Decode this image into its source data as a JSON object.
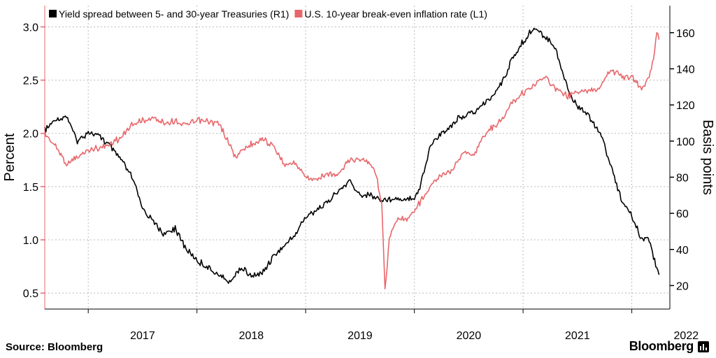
{
  "chart_data": {
    "type": "line",
    "legend_placement": "top-left",
    "grid": true,
    "x_tick_labels": [
      "2017",
      "2018",
      "2019",
      "2020",
      "2021",
      "2022"
    ],
    "x_range": [
      2016.6,
      2022.35
    ],
    "y_left": {
      "label": "Percent",
      "range": [
        0.35,
        3.2
      ],
      "tick_labels": [
        "0.5",
        "1.0",
        "1.5",
        "2.0",
        "2.5",
        "3.0"
      ]
    },
    "y_right": {
      "label": "Basis points",
      "range": [
        7,
        175
      ],
      "tick_labels": [
        "20",
        "40",
        "60",
        "80",
        "100",
        "120",
        "140",
        "160"
      ]
    },
    "series": [
      {
        "name": "Yield spread between 5- and 30-year Treasuries (R1)",
        "axis": "right",
        "color": "#000000",
        "points": [
          [
            2016.6,
            106
          ],
          [
            2016.7,
            112
          ],
          [
            2016.8,
            114
          ],
          [
            2016.9,
            100
          ],
          [
            2017.0,
            105
          ],
          [
            2017.1,
            103
          ],
          [
            2017.2,
            97
          ],
          [
            2017.3,
            90
          ],
          [
            2017.4,
            80
          ],
          [
            2017.5,
            63
          ],
          [
            2017.6,
            55
          ],
          [
            2017.7,
            48
          ],
          [
            2017.8,
            52
          ],
          [
            2017.9,
            40
          ],
          [
            2018.0,
            34
          ],
          [
            2018.1,
            30
          ],
          [
            2018.2,
            26
          ],
          [
            2018.3,
            22
          ],
          [
            2018.4,
            30
          ],
          [
            2018.5,
            25
          ],
          [
            2018.6,
            27
          ],
          [
            2018.7,
            36
          ],
          [
            2018.8,
            42
          ],
          [
            2018.9,
            48
          ],
          [
            2019.0,
            58
          ],
          [
            2019.1,
            62
          ],
          [
            2019.2,
            66
          ],
          [
            2019.3,
            72
          ],
          [
            2019.4,
            78
          ],
          [
            2019.5,
            70
          ],
          [
            2019.6,
            70
          ],
          [
            2019.7,
            67
          ],
          [
            2019.8,
            68
          ],
          [
            2019.9,
            68
          ],
          [
            2020.0,
            69
          ],
          [
            2020.05,
            74
          ],
          [
            2020.15,
            98
          ],
          [
            2020.25,
            104
          ],
          [
            2020.4,
            112
          ],
          [
            2020.55,
            116
          ],
          [
            2020.7,
            124
          ],
          [
            2020.8,
            132
          ],
          [
            2020.9,
            145
          ],
          [
            2021.0,
            155
          ],
          [
            2021.1,
            163
          ],
          [
            2021.2,
            158
          ],
          [
            2021.3,
            152
          ],
          [
            2021.35,
            140
          ],
          [
            2021.45,
            123
          ],
          [
            2021.6,
            114
          ],
          [
            2021.7,
            106
          ],
          [
            2021.8,
            88
          ],
          [
            2021.9,
            68
          ],
          [
            2022.0,
            58
          ],
          [
            2022.1,
            45
          ],
          [
            2022.15,
            48
          ],
          [
            2022.2,
            36
          ],
          [
            2022.25,
            26
          ]
        ]
      },
      {
        "name": "U.S. 10-year break-even inflation rate (L1)",
        "axis": "left",
        "color": "#e8676b",
        "points": [
          [
            2016.6,
            2.0
          ],
          [
            2016.7,
            1.88
          ],
          [
            2016.8,
            1.72
          ],
          [
            2016.9,
            1.77
          ],
          [
            2017.0,
            1.85
          ],
          [
            2017.1,
            1.86
          ],
          [
            2017.2,
            1.9
          ],
          [
            2017.3,
            1.96
          ],
          [
            2017.4,
            2.08
          ],
          [
            2017.5,
            2.12
          ],
          [
            2017.6,
            2.14
          ],
          [
            2017.7,
            2.1
          ],
          [
            2017.8,
            2.12
          ],
          [
            2017.9,
            2.08
          ],
          [
            2018.0,
            2.12
          ],
          [
            2018.1,
            2.11
          ],
          [
            2018.2,
            2.09
          ],
          [
            2018.25,
            2.0
          ],
          [
            2018.35,
            1.78
          ],
          [
            2018.45,
            1.87
          ],
          [
            2018.6,
            1.95
          ],
          [
            2018.7,
            1.88
          ],
          [
            2018.8,
            1.72
          ],
          [
            2018.9,
            1.72
          ],
          [
            2019.0,
            1.6
          ],
          [
            2019.1,
            1.55
          ],
          [
            2019.2,
            1.62
          ],
          [
            2019.3,
            1.6
          ],
          [
            2019.4,
            1.76
          ],
          [
            2019.5,
            1.76
          ],
          [
            2019.6,
            1.72
          ],
          [
            2019.65,
            1.62
          ],
          [
            2019.7,
            1.32
          ],
          [
            2019.73,
            0.54
          ],
          [
            2019.77,
            1.02
          ],
          [
            2019.85,
            1.2
          ],
          [
            2019.95,
            1.2
          ],
          [
            2020.05,
            1.35
          ],
          [
            2020.15,
            1.5
          ],
          [
            2020.25,
            1.62
          ],
          [
            2020.35,
            1.66
          ],
          [
            2020.45,
            1.82
          ],
          [
            2020.55,
            1.8
          ],
          [
            2020.65,
            2.0
          ],
          [
            2020.8,
            2.12
          ],
          [
            2020.9,
            2.3
          ],
          [
            2021.0,
            2.38
          ],
          [
            2021.1,
            2.45
          ],
          [
            2021.2,
            2.52
          ],
          [
            2021.3,
            2.42
          ],
          [
            2021.4,
            2.35
          ],
          [
            2021.5,
            2.38
          ],
          [
            2021.6,
            2.4
          ],
          [
            2021.7,
            2.42
          ],
          [
            2021.8,
            2.6
          ],
          [
            2021.9,
            2.54
          ],
          [
            2022.0,
            2.52
          ],
          [
            2022.1,
            2.42
          ],
          [
            2022.15,
            2.52
          ],
          [
            2022.2,
            2.7
          ],
          [
            2022.23,
            2.95
          ],
          [
            2022.25,
            2.88
          ]
        ]
      }
    ]
  },
  "footer": {
    "source": "Source: Bloomberg",
    "brand": "Bloomberg"
  },
  "colors": {
    "grid": "#bbbbbb",
    "axis": "#000000"
  }
}
